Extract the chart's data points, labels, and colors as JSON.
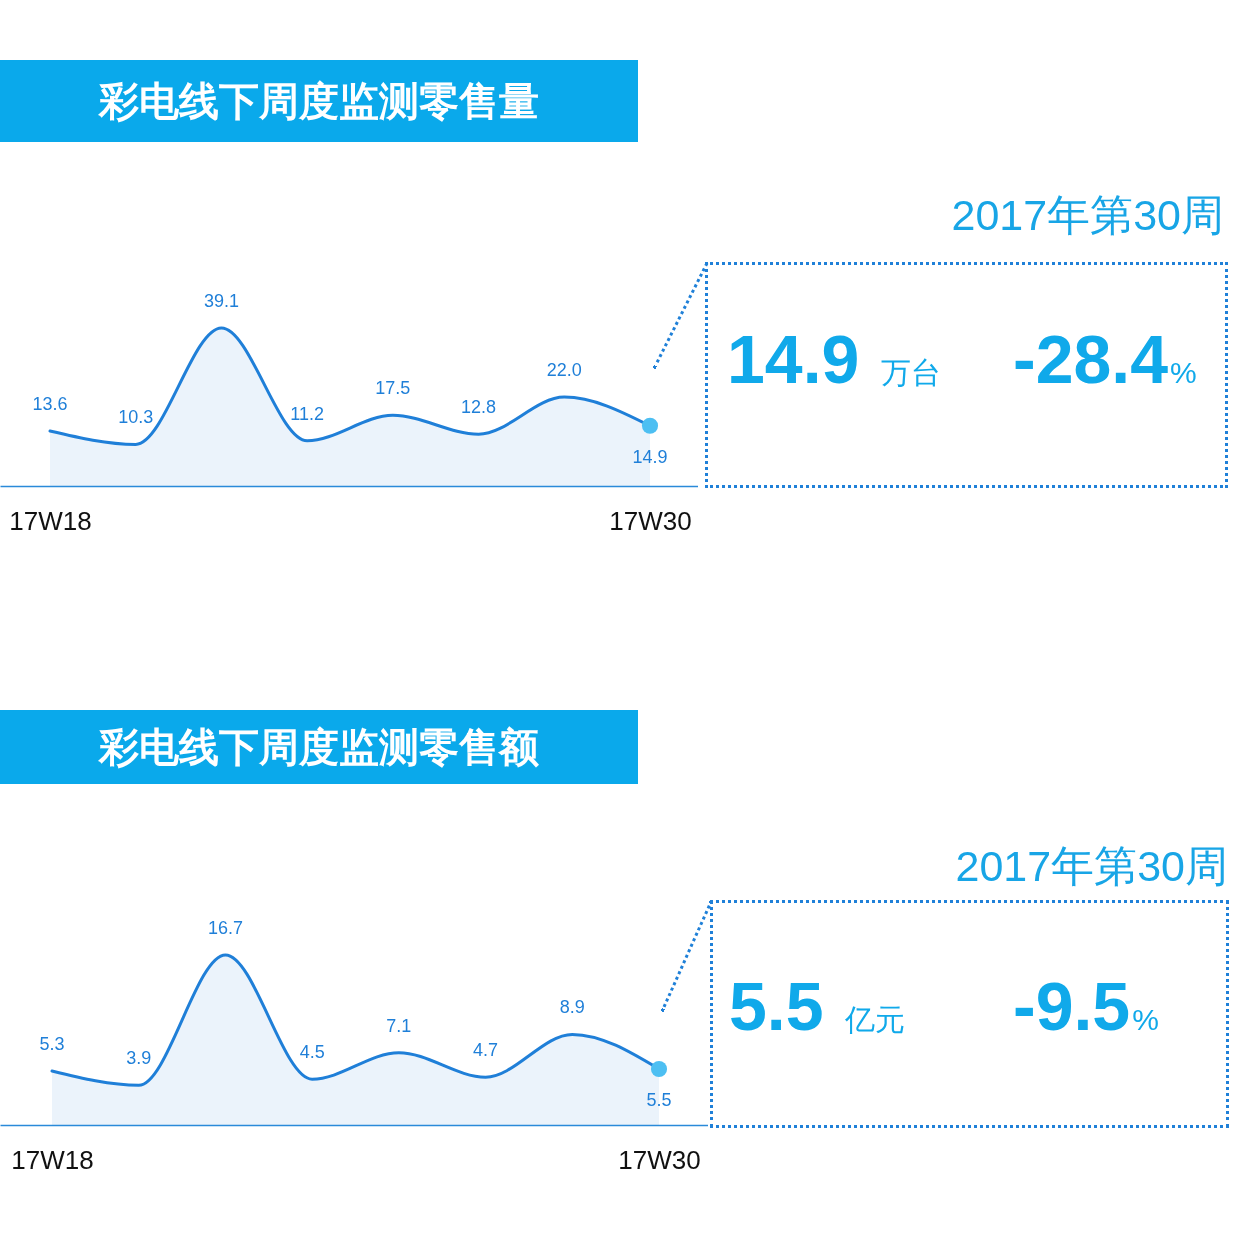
{
  "chart_data": [
    {
      "type": "area",
      "title": "彩电线下周度监测零售量",
      "tick_labels": "x",
      "categories": [
        "17W18",
        null,
        null,
        null,
        null,
        null,
        null,
        "17W30"
      ],
      "series": [
        {
          "type": "area",
          "color": "#1f7fd8",
          "values": [
            13.6,
            10.3,
            39.1,
            11.2,
            17.5,
            12.8,
            22.0,
            14.9
          ],
          "value_labels": [
            "13.6",
            "10.3",
            "39.1",
            "11.2",
            "17.5",
            "12.8",
            "22.0",
            null
          ]
        },
        {
          "type": "scatter",
          "color": "#4dbff2",
          "x": [
            "17W30"
          ],
          "values": [
            14.9
          ],
          "value_labels": [
            "14.9"
          ]
        }
      ]
    },
    {
      "type": "other",
      "title": "2017年第30周",
      "annotations": [
        "14.9",
        "万台",
        "-28.4",
        "%"
      ]
    },
    {
      "type": "area",
      "title": "彩电线下周度监测零售额",
      "tick_labels": "x",
      "categories": [
        "17W18",
        null,
        null,
        null,
        null,
        null,
        null,
        "17W30"
      ],
      "series": [
        {
          "type": "area",
          "color": "#1f7fd8",
          "values": [
            5.3,
            3.9,
            16.7,
            4.5,
            7.1,
            4.7,
            8.9,
            5.5
          ],
          "value_labels": [
            "5.3",
            "3.9",
            "16.7",
            "4.5",
            "7.1",
            "4.7",
            "8.9",
            null
          ]
        },
        {
          "type": "scatter",
          "color": "#4dbff2",
          "x": [
            "17W30"
          ],
          "values": [
            5.5
          ],
          "value_labels": [
            "5.5"
          ]
        }
      ]
    },
    {
      "type": "other",
      "title": "2017年第30周",
      "annotations": [
        "5.5",
        "亿元",
        "-9.5",
        "%"
      ]
    }
  ]
}
